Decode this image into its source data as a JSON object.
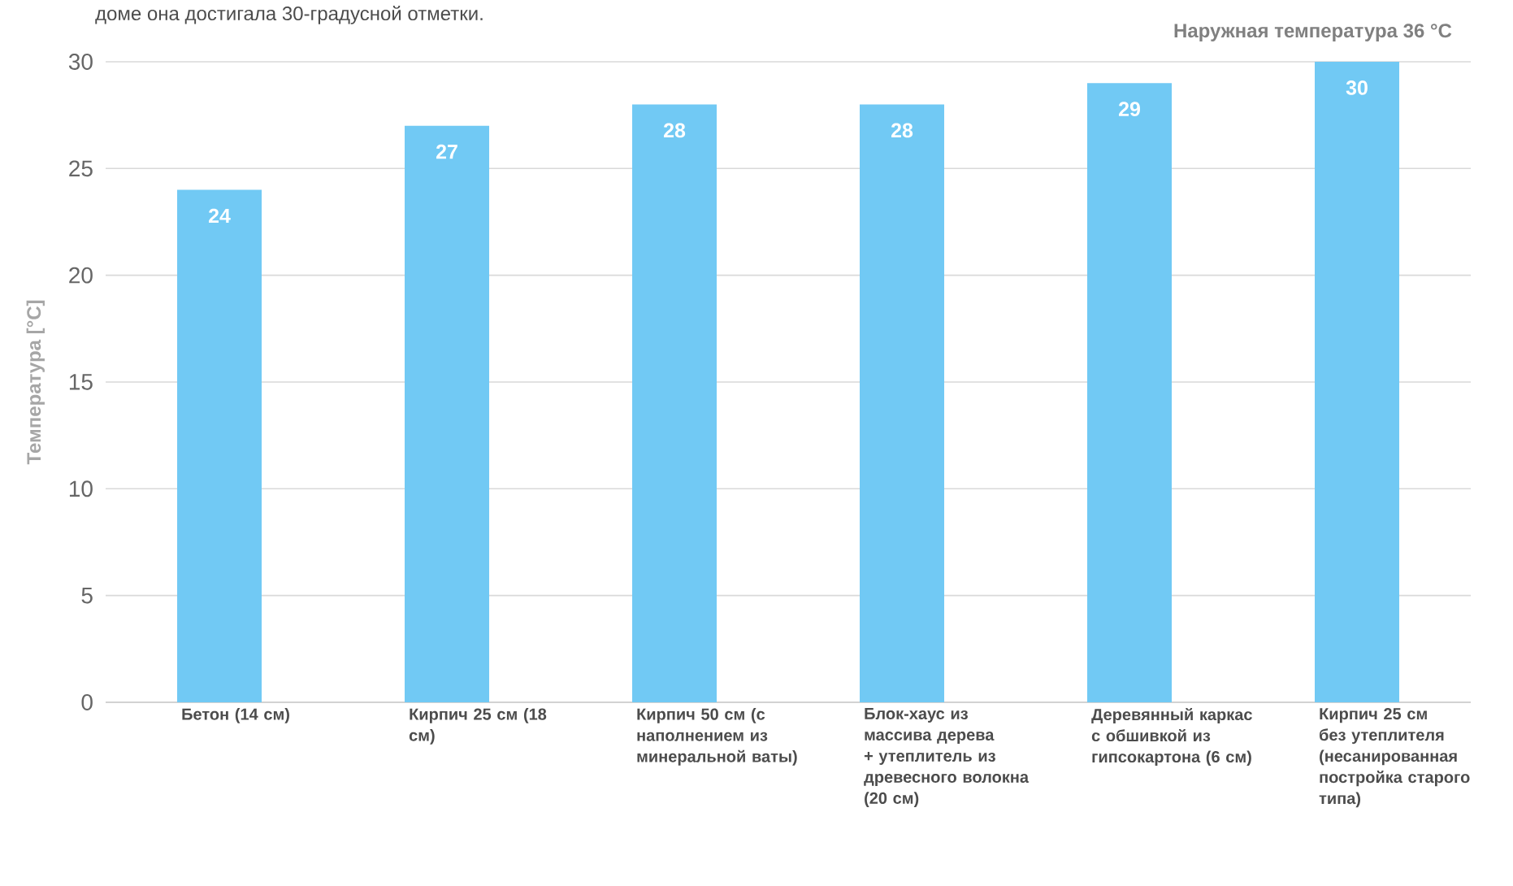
{
  "chart_data": {
    "type": "bar",
    "ylabel": "Температура [°C]",
    "categories": [
      "Бетон (14 см)",
      "Кирпич 25 см (18 см)",
      "Кирпич 50 см (с наполнением из минеральной ваты)",
      "Блок-хаус из массива дерева + утеплитель из древесного волокна (20 см)",
      "Деревянный каркас с обшивкой из гипсокартона (6 см)",
      "Кирпич 25 см без утеплителя (несанированная постройка старого типа)"
    ],
    "values": [
      24,
      27,
      28,
      28,
      29,
      30
    ],
    "color": "#71c9f4",
    "ylim": [
      0,
      30
    ],
    "yticks": [
      0,
      5,
      10,
      15,
      20,
      25,
      30
    ],
    "grid": "y",
    "data_labels": true,
    "annotations": [
      "доме она достигала 30-градусной отметки.",
      "Наружная температура 36 °C"
    ]
  }
}
